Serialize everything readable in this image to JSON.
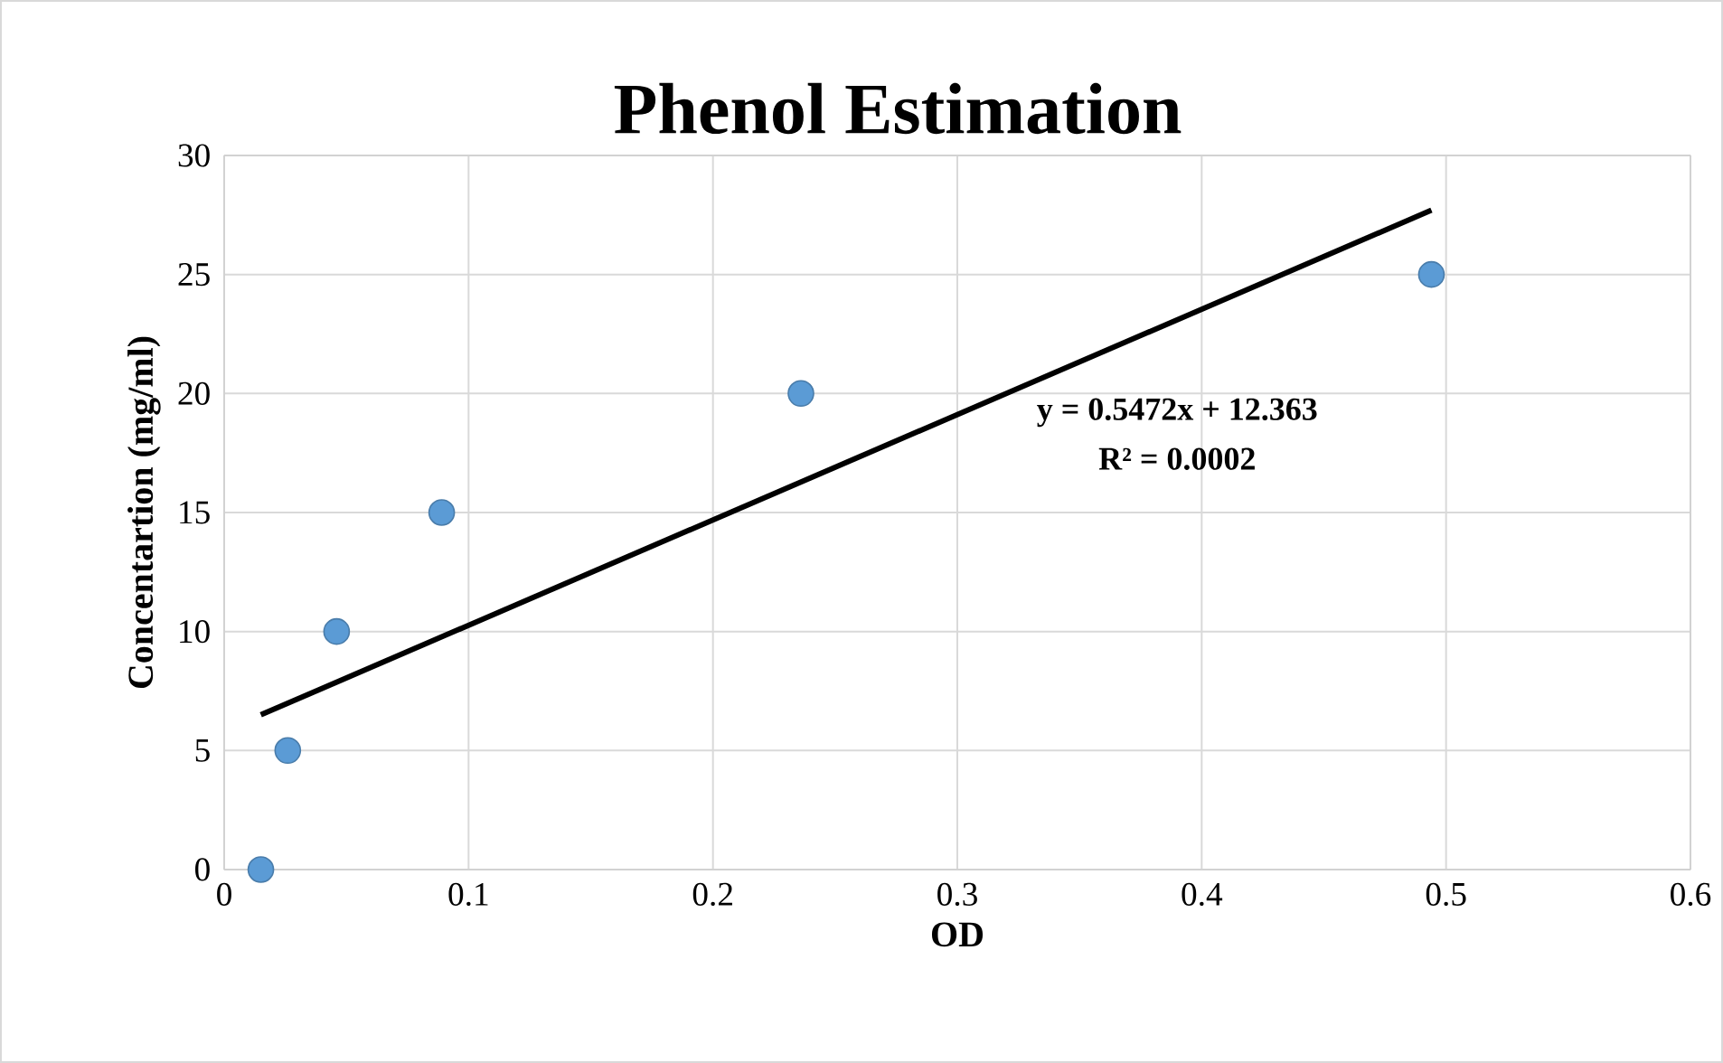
{
  "chart_data": {
    "type": "scatter",
    "title": "Phenol Estimation",
    "xlabel": "OD",
    "ylabel": "Concentartion (mg/ml)",
    "series": [
      {
        "color": "#5b9bd5",
        "marker": "circle",
        "x": [
          0.015,
          0.026,
          0.046,
          0.089,
          0.236,
          0.494
        ],
        "values": [
          0,
          5,
          10,
          15,
          20,
          25
        ]
      },
      {
        "type": "line",
        "color": "#000000",
        "marker": "none",
        "line_style": "solid",
        "x": [
          0.015,
          0.494
        ],
        "values": [
          6.5,
          27.7
        ]
      }
    ],
    "annotations": [
      "y = 0.5472x + 12.363",
      "R² = 0.0002"
    ],
    "xlim": [
      0,
      0.6
    ],
    "ylim": [
      0,
      30
    ],
    "xticks": [
      0,
      {
        "value": 0.1,
        "label": "0.1"
      },
      {
        "value": 0.2,
        "label": "0.2"
      },
      {
        "value": 0.3,
        "label": "0.3"
      },
      {
        "value": 0.4,
        "label": "0.4"
      },
      {
        "value": 0.5,
        "label": "0.5"
      },
      {
        "value": 0.6,
        "label": "0.6"
      }
    ],
    "yticks": [
      0,
      5,
      10,
      15,
      20,
      25,
      30
    ],
    "grid": true
  }
}
